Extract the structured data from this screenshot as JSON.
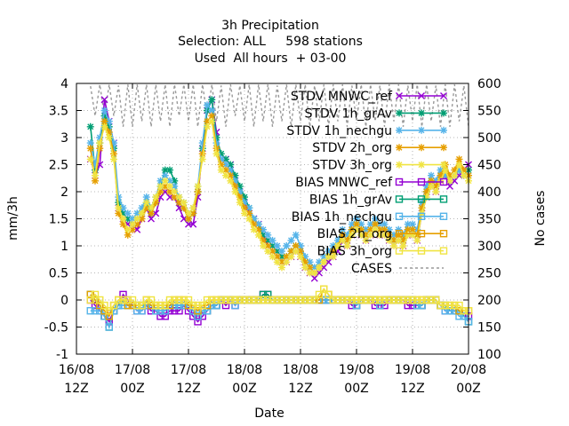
{
  "chart_data": {
    "type": "line",
    "title": [
      "3h Precipitation",
      "Selection: ALL     598 stations",
      "Used  All hours  + 03-00"
    ],
    "xlabel": "Date",
    "ylabel": "mm/3h",
    "y2label": "No cases",
    "ylim": [
      -1,
      4
    ],
    "y2lim": [
      100,
      600
    ],
    "xlim": [
      0,
      84
    ],
    "yticks": [
      "-1",
      "-0.5",
      "0",
      "0.5",
      "1",
      "1.5",
      "2",
      "2.5",
      "3",
      "3.5",
      "4"
    ],
    "y2ticks": [
      "100",
      "150",
      "200",
      "250",
      "300",
      "350",
      "400",
      "450",
      "500",
      "550",
      "600"
    ],
    "xticks": [
      {
        "x": 0,
        "l1": "16/08",
        "l2": "12Z"
      },
      {
        "x": 12,
        "l1": "17/08",
        "l2": "00Z"
      },
      {
        "x": 24,
        "l1": "17/08",
        "l2": "12Z"
      },
      {
        "x": 36,
        "l1": "18/08",
        "l2": "00Z"
      },
      {
        "x": 48,
        "l1": "18/08",
        "l2": "12Z"
      },
      {
        "x": 60,
        "l1": "19/08",
        "l2": "00Z"
      },
      {
        "x": 72,
        "l1": "19/08",
        "l2": "12Z"
      },
      {
        "x": 84,
        "l1": "20/08",
        "l2": "00Z"
      }
    ],
    "grid": true,
    "legend_position": "top-right",
    "x": [
      3,
      4,
      5,
      6,
      7,
      8,
      9,
      10,
      11,
      12,
      13,
      14,
      15,
      16,
      17,
      18,
      19,
      20,
      21,
      22,
      23,
      24,
      25,
      26,
      27,
      28,
      29,
      30,
      31,
      32,
      33,
      34,
      35,
      36,
      37,
      38,
      39,
      40,
      41,
      42,
      43,
      44,
      45,
      46,
      47,
      48,
      49,
      50,
      51,
      52,
      53,
      54,
      55,
      56,
      57,
      58,
      59,
      60,
      61,
      62,
      63,
      64,
      65,
      66,
      67,
      68,
      69,
      70,
      71,
      72,
      73,
      74,
      75,
      76,
      77,
      78,
      79,
      80,
      81,
      82,
      83,
      84
    ],
    "series": [
      {
        "name": "STDV MNWC_ref",
        "subscript": "r",
        "sub_at": 10,
        "color": "#9400d3",
        "marker": "x",
        "axis": "y",
        "values": [
          2.6,
          2.3,
          2.5,
          3.7,
          3.3,
          2.9,
          1.7,
          1.5,
          1.4,
          1.4,
          1.3,
          1.5,
          1.7,
          1.5,
          1.6,
          1.9,
          2.0,
          1.9,
          1.9,
          1.7,
          1.5,
          1.4,
          1.4,
          1.9,
          2.8,
          3.5,
          3.7,
          3.1,
          2.6,
          2.6,
          2.5,
          2.2,
          2.0,
          1.8,
          1.6,
          1.5,
          1.4,
          1.2,
          1.0,
          0.9,
          0.8,
          0.7,
          0.7,
          0.8,
          0.9,
          0.8,
          0.6,
          0.5,
          0.4,
          0.5,
          0.6,
          0.7,
          0.8,
          0.9,
          1.1,
          1.0,
          1.2,
          1.3,
          1.2,
          1.1,
          1.2,
          1.3,
          1.2,
          1.2,
          1.1,
          1.0,
          1.1,
          1.0,
          1.2,
          1.2,
          1.1,
          1.6,
          1.9,
          2.1,
          2.0,
          2.2,
          2.3,
          2.1,
          2.2,
          2.3,
          2.4,
          2.5
        ]
      },
      {
        "name": "STDV 1h_grAv",
        "subscript": "g",
        "sub_at": 5,
        "color": "#009e73",
        "marker": "star",
        "axis": "y",
        "values": [
          3.2,
          2.4,
          2.9,
          3.4,
          3.2,
          2.8,
          1.8,
          1.6,
          1.5,
          1.4,
          1.5,
          1.6,
          1.8,
          1.6,
          1.8,
          2.1,
          2.4,
          2.4,
          2.2,
          1.8,
          1.7,
          1.5,
          1.6,
          2.0,
          2.8,
          3.5,
          3.7,
          3.0,
          2.7,
          2.6,
          2.5,
          2.3,
          2.1,
          1.9,
          1.7,
          1.5,
          1.4,
          1.2,
          1.1,
          1.0,
          0.9,
          0.8,
          0.8,
          0.9,
          1.0,
          0.9,
          0.7,
          0.6,
          0.5,
          0.6,
          0.7,
          0.8,
          0.9,
          1.0,
          1.2,
          1.1,
          1.3,
          1.4,
          1.3,
          1.2,
          1.3,
          1.4,
          1.3,
          1.3,
          1.2,
          1.1,
          1.2,
          1.1,
          1.3,
          1.3,
          1.2,
          1.7,
          2.0,
          2.2,
          2.1,
          2.3,
          2.4,
          2.2,
          2.3,
          2.4,
          2.3,
          2.4
        ]
      },
      {
        "name": "STDV 1h_nechgu",
        "subscript": "n",
        "sub_at": 5,
        "color": "#56b4e9",
        "marker": "star",
        "axis": "y",
        "values": [
          2.9,
          2.5,
          3.0,
          3.5,
          3.3,
          2.9,
          1.9,
          1.7,
          1.6,
          1.5,
          1.6,
          1.7,
          1.9,
          1.7,
          1.9,
          2.2,
          2.3,
          2.2,
          2.1,
          1.9,
          1.8,
          1.6,
          1.7,
          2.1,
          2.9,
          3.6,
          3.5,
          2.9,
          2.6,
          2.5,
          2.4,
          2.2,
          2.0,
          1.8,
          1.7,
          1.5,
          1.4,
          1.3,
          1.2,
          1.1,
          1.0,
          0.9,
          1.0,
          1.1,
          1.2,
          1.0,
          0.8,
          0.7,
          0.6,
          0.7,
          0.8,
          0.9,
          1.0,
          1.1,
          1.3,
          1.2,
          1.4,
          1.5,
          1.4,
          1.3,
          1.4,
          1.5,
          1.4,
          1.4,
          1.3,
          1.2,
          1.3,
          1.2,
          1.4,
          1.4,
          1.3,
          1.8,
          2.1,
          2.3,
          2.2,
          2.4,
          2.3,
          2.2,
          2.3,
          2.4,
          2.3,
          2.3
        ]
      },
      {
        "name": "STDV 2h_org",
        "subscript": "o",
        "sub_at": 2,
        "color": "#e69f00",
        "marker": "star",
        "axis": "y",
        "values": [
          2.8,
          2.2,
          2.8,
          3.3,
          3.1,
          2.7,
          1.6,
          1.4,
          1.2,
          1.3,
          1.4,
          1.5,
          1.7,
          1.6,
          1.8,
          2.0,
          2.1,
          2.0,
          1.9,
          1.8,
          1.7,
          1.5,
          1.6,
          2.0,
          2.7,
          3.3,
          3.4,
          2.8,
          2.5,
          2.4,
          2.3,
          2.1,
          1.9,
          1.7,
          1.6,
          1.4,
          1.3,
          1.1,
          1.0,
          0.9,
          0.8,
          0.7,
          0.8,
          0.9,
          1.0,
          0.9,
          0.7,
          0.6,
          0.5,
          0.6,
          0.7,
          0.8,
          0.9,
          1.0,
          1.2,
          1.1,
          1.3,
          1.4,
          1.3,
          1.2,
          1.3,
          1.4,
          1.3,
          1.3,
          1.2,
          1.1,
          1.2,
          1.1,
          1.3,
          1.3,
          1.2,
          1.7,
          2.0,
          2.2,
          2.1,
          2.3,
          2.5,
          2.3,
          2.4,
          2.6,
          2.4,
          2.3
        ]
      },
      {
        "name": "STDV 3h_org",
        "subscript": "o",
        "sub_at": 2,
        "color": "#f0e442",
        "marker": "star",
        "axis": "y",
        "values": [
          2.6,
          2.3,
          2.9,
          3.2,
          3.0,
          2.6,
          1.7,
          1.5,
          1.3,
          1.4,
          1.5,
          1.6,
          1.8,
          1.7,
          1.9,
          2.1,
          2.2,
          2.1,
          2.0,
          1.9,
          1.8,
          1.6,
          1.7,
          2.1,
          2.6,
          3.2,
          3.3,
          2.7,
          2.4,
          2.3,
          2.2,
          2.0,
          1.8,
          1.6,
          1.5,
          1.3,
          1.2,
          1.0,
          0.9,
          0.8,
          0.7,
          0.6,
          0.7,
          0.8,
          0.9,
          0.8,
          0.6,
          0.5,
          0.5,
          0.6,
          0.7,
          0.8,
          0.8,
          1.0,
          1.1,
          1.0,
          1.2,
          1.3,
          1.2,
          1.1,
          1.2,
          1.3,
          1.2,
          1.2,
          1.1,
          1.0,
          1.1,
          1.0,
          1.2,
          1.2,
          1.1,
          1.6,
          1.9,
          2.1,
          2.0,
          2.2,
          2.4,
          2.2,
          2.3,
          2.5,
          2.3,
          2.2
        ]
      },
      {
        "name": "BIAS MNWC_ref",
        "subscript": "r",
        "sub_at": 10,
        "color": "#9400d3",
        "marker": "square",
        "axis": "y",
        "values": [
          0.0,
          -0.1,
          -0.2,
          -0.3,
          -0.4,
          -0.2,
          -0.1,
          0.1,
          0.0,
          -0.1,
          -0.2,
          -0.2,
          -0.1,
          -0.2,
          -0.2,
          -0.3,
          -0.3,
          -0.2,
          -0.2,
          -0.2,
          -0.1,
          -0.2,
          -0.3,
          -0.4,
          -0.3,
          -0.2,
          -0.1,
          -0.1,
          0.0,
          -0.1,
          0.0,
          -0.1,
          0.0,
          0.0,
          0.0,
          0.0,
          0.0,
          0.1,
          0.1,
          0.0,
          0.0,
          0.0,
          0.0,
          0.0,
          0.0,
          0.0,
          0.0,
          0.0,
          0.0,
          0.0,
          0.0,
          0.0,
          0.0,
          0.0,
          0.0,
          0.0,
          -0.1,
          -0.1,
          0.0,
          0.0,
          0.0,
          -0.1,
          -0.1,
          -0.1,
          0.0,
          0.0,
          0.0,
          0.0,
          -0.1,
          -0.1,
          -0.1,
          -0.1,
          0.0,
          0.0,
          0.0,
          -0.1,
          -0.2,
          -0.2,
          -0.2,
          -0.2,
          -0.3,
          -0.3
        ]
      },
      {
        "name": "BIAS 1h_grAv",
        "subscript": "g",
        "sub_at": 5,
        "color": "#009e73",
        "marker": "square",
        "axis": "y",
        "values": [
          0.1,
          0.0,
          -0.1,
          -0.3,
          -0.5,
          -0.2,
          -0.1,
          0.0,
          -0.1,
          -0.1,
          -0.1,
          -0.1,
          -0.1,
          -0.1,
          -0.2,
          -0.2,
          -0.2,
          -0.1,
          -0.1,
          -0.1,
          -0.1,
          -0.1,
          -0.2,
          -0.3,
          -0.2,
          -0.2,
          -0.1,
          -0.1,
          0.0,
          0.0,
          0.0,
          0.0,
          0.0,
          0.0,
          0.0,
          0.0,
          0.0,
          0.1,
          0.1,
          0.0,
          0.0,
          0.0,
          0.0,
          0.0,
          0.0,
          0.0,
          0.0,
          0.0,
          0.0,
          0.0,
          0.0,
          0.0,
          0.0,
          0.0,
          0.0,
          0.0,
          0.0,
          -0.1,
          0.0,
          0.0,
          0.0,
          0.0,
          -0.1,
          0.0,
          0.0,
          0.0,
          0.0,
          0.0,
          0.0,
          0.0,
          -0.1,
          -0.1,
          0.0,
          0.0,
          0.0,
          -0.1,
          -0.1,
          -0.2,
          -0.2,
          -0.2,
          -0.3,
          -0.4
        ]
      },
      {
        "name": "BIAS 1h_nechgu",
        "subscript": "n",
        "sub_at": 5,
        "color": "#56b4e9",
        "marker": "square",
        "axis": "y",
        "values": [
          -0.2,
          -0.2,
          -0.2,
          -0.3,
          -0.5,
          -0.2,
          -0.1,
          -0.1,
          -0.1,
          -0.1,
          -0.2,
          -0.2,
          -0.1,
          -0.1,
          -0.2,
          -0.2,
          -0.2,
          -0.1,
          -0.1,
          -0.1,
          -0.1,
          -0.1,
          -0.2,
          -0.3,
          -0.2,
          -0.2,
          -0.1,
          -0.1,
          0.0,
          0.0,
          0.0,
          -0.1,
          0.0,
          0.0,
          0.0,
          0.0,
          0.0,
          0.0,
          0.0,
          0.0,
          0.0,
          0.0,
          0.0,
          0.0,
          0.0,
          0.0,
          0.0,
          0.0,
          0.0,
          0.0,
          0.0,
          0.0,
          0.0,
          0.0,
          0.0,
          0.0,
          0.0,
          -0.1,
          0.0,
          0.0,
          0.0,
          0.0,
          -0.1,
          0.0,
          0.0,
          0.0,
          0.0,
          0.0,
          0.0,
          0.0,
          -0.1,
          -0.1,
          0.0,
          0.0,
          0.0,
          -0.1,
          -0.2,
          -0.2,
          -0.2,
          -0.3,
          -0.3,
          -0.4
        ]
      },
      {
        "name": "BIAS 2h_org",
        "subscript": "o",
        "sub_at": 2,
        "color": "#e69f00",
        "marker": "square",
        "axis": "y",
        "values": [
          0.1,
          0.0,
          -0.1,
          -0.2,
          -0.3,
          -0.1,
          0.0,
          0.0,
          -0.1,
          -0.1,
          -0.1,
          -0.1,
          0.0,
          -0.1,
          -0.1,
          -0.1,
          -0.1,
          -0.1,
          0.0,
          0.0,
          0.0,
          -0.1,
          -0.1,
          -0.2,
          -0.1,
          -0.1,
          0.0,
          0.0,
          0.0,
          0.0,
          0.0,
          0.0,
          0.0,
          0.0,
          0.0,
          0.0,
          0.0,
          0.0,
          0.0,
          0.0,
          0.0,
          0.0,
          0.0,
          0.0,
          0.0,
          0.0,
          0.0,
          0.0,
          0.0,
          0.0,
          0.2,
          0.1,
          0.0,
          0.0,
          0.0,
          0.0,
          0.0,
          0.0,
          0.0,
          0.0,
          0.0,
          0.0,
          0.0,
          0.0,
          0.0,
          0.0,
          0.0,
          0.0,
          0.0,
          0.0,
          0.0,
          0.0,
          0.0,
          0.0,
          0.0,
          -0.1,
          -0.1,
          -0.1,
          -0.1,
          -0.2,
          -0.2,
          -0.2
        ]
      },
      {
        "name": "BIAS 3h_org",
        "subscript": "o",
        "sub_at": 2,
        "color": "#f0e442",
        "marker": "square",
        "axis": "y",
        "values": [
          0.0,
          0.1,
          0.0,
          -0.1,
          -0.2,
          -0.1,
          0.0,
          0.0,
          0.0,
          0.0,
          -0.1,
          -0.1,
          0.0,
          0.0,
          -0.1,
          -0.1,
          -0.1,
          0.0,
          0.0,
          0.0,
          0.0,
          0.0,
          -0.1,
          -0.1,
          -0.1,
          0.0,
          0.0,
          0.0,
          0.0,
          0.0,
          0.0,
          0.0,
          0.0,
          0.0,
          0.0,
          0.0,
          0.0,
          0.0,
          0.0,
          0.0,
          0.0,
          0.0,
          0.0,
          0.0,
          0.0,
          0.0,
          0.0,
          0.0,
          0.0,
          0.1,
          0.2,
          0.1,
          0.0,
          0.0,
          0.0,
          0.0,
          0.0,
          0.0,
          0.0,
          0.0,
          0.0,
          0.0,
          0.0,
          0.0,
          0.0,
          0.0,
          0.0,
          0.0,
          0.0,
          0.0,
          0.0,
          0.0,
          0.0,
          0.0,
          0.0,
          -0.1,
          -0.1,
          -0.1,
          -0.1,
          -0.1,
          -0.2,
          -0.2
        ]
      },
      {
        "name": "CASES",
        "subscript": "",
        "sub_at": -1,
        "color": "#999999",
        "marker": "none",
        "dash": true,
        "axis": "y2",
        "values": [
          595,
          540,
          598,
          540,
          598,
          540,
          596,
          520,
          598,
          520,
          598,
          530,
          598,
          520,
          598,
          530,
          598,
          520,
          598,
          540,
          598,
          530,
          598,
          520,
          598,
          540,
          598,
          530,
          596,
          520,
          598,
          540,
          596,
          530,
          598,
          520,
          598,
          530,
          598,
          520,
          596,
          530,
          598,
          520,
          598,
          530,
          598,
          520,
          596,
          530,
          598,
          520,
          598,
          530,
          598,
          520,
          596,
          530,
          598,
          520,
          598,
          530,
          596,
          520,
          598,
          530,
          598,
          520,
          596,
          530,
          598,
          520,
          598,
          530,
          596,
          520,
          598,
          520,
          598,
          530,
          596,
          520
        ]
      }
    ]
  }
}
